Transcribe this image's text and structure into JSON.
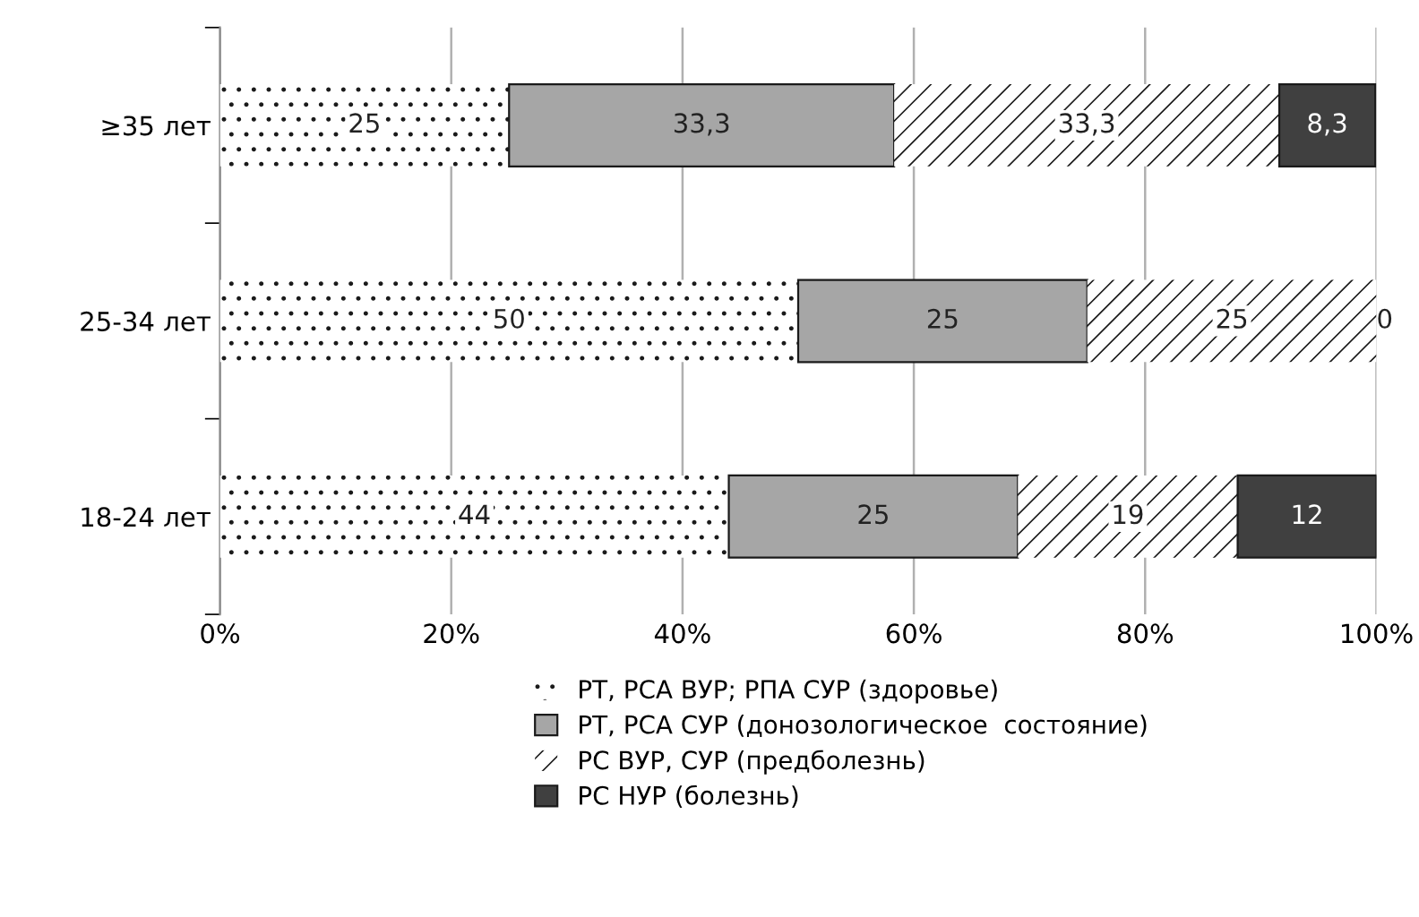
{
  "chart_data": {
    "type": "bar",
    "orientation": "horizontal",
    "stacked": true,
    "categories": [
      "≥35 лет",
      "25-34 лет",
      "18-24 лет"
    ],
    "series": [
      {
        "name": "РТ, РСА ВУР; РПА СУР (здоровье)",
        "color": "#ffffff",
        "values": [
          25,
          50,
          44
        ],
        "value_labels": [
          "25",
          "50",
          "44"
        ]
      },
      {
        "name": "РТ, РСА СУР (донозологическое  состояние)",
        "color": "#a6a6a6",
        "values": [
          33.3,
          25,
          25
        ],
        "value_labels": [
          "33,3",
          "25",
          "25"
        ]
      },
      {
        "name": "РС ВУР, СУР (предболезнь)",
        "color": "#ffffff",
        "values": [
          33.3,
          25,
          19
        ],
        "value_labels": [
          "33,3",
          "25",
          "19"
        ]
      },
      {
        "name": "РС НУР (болезнь)",
        "color": "#404040",
        "values": [
          8.3,
          0,
          12
        ],
        "value_labels": [
          "8,3",
          "0",
          "12"
        ]
      }
    ],
    "xlim": [
      0,
      100
    ],
    "xticks": [
      {
        "value": 0,
        "label": "0%"
      },
      {
        "value": 20,
        "label": "20%"
      },
      {
        "value": 40,
        "label": "40%"
      },
      {
        "value": 60,
        "label": "60%"
      },
      {
        "value": 80,
        "label": "80%"
      },
      {
        "value": 100,
        "label": "100%"
      }
    ],
    "grid": "x",
    "legend": "bottom"
  }
}
